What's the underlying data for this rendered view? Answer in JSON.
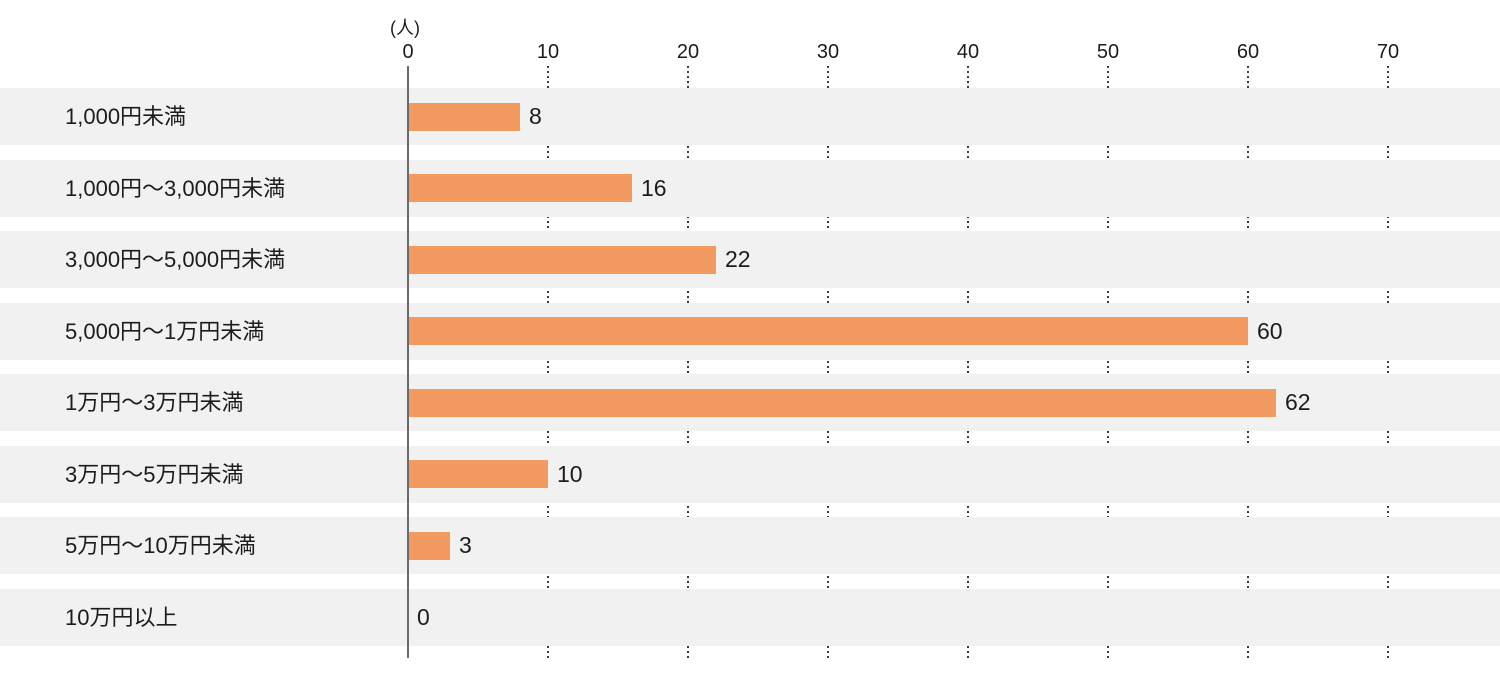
{
  "chart_data": {
    "type": "bar",
    "orientation": "horizontal",
    "title": "",
    "xlabel": "(人)",
    "ylabel": "",
    "unit": "(人)",
    "categories": [
      "1,000円未満",
      "1,000円〜3,000円未満",
      "3,000円〜5,000円未満",
      "5,000円〜1万円未満",
      "1万円〜3万円未満",
      "3万円〜5万円未満",
      "5万円〜10万円未満",
      "10万円以上"
    ],
    "values": [
      8,
      16,
      22,
      60,
      62,
      10,
      3,
      0
    ],
    "x_ticks": [
      0,
      10,
      20,
      30,
      40,
      50,
      60,
      70
    ],
    "xlim": [
      0,
      78
    ],
    "grid": "dotted-vertical",
    "legend": "none"
  },
  "colors": {
    "bar": "#F39A61",
    "row_background": "#F1F1F1",
    "axis_line": "#6A6A6A",
    "gridline_dots": "#3C3C3C",
    "text": "#1C1C1C",
    "background": "#FFFFFF"
  }
}
